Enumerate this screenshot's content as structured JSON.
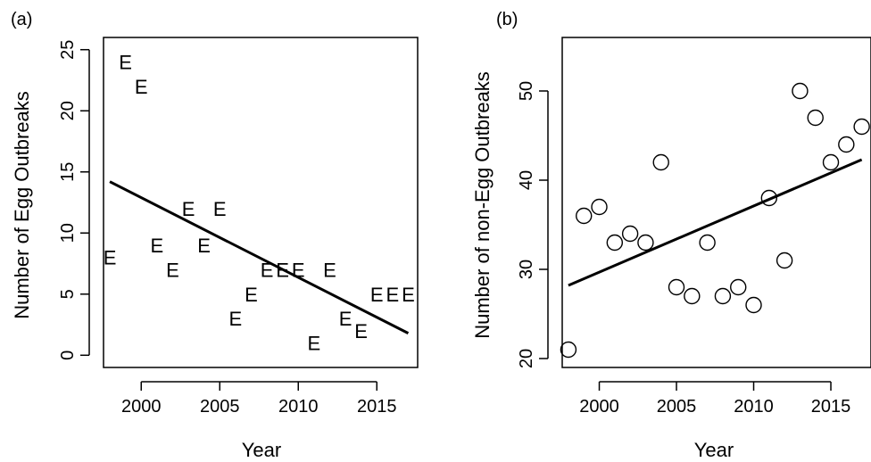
{
  "chart_data": [
    {
      "panel_label": "(a)",
      "type": "scatter",
      "marker": "E",
      "xlabel": "Year",
      "ylabel": "Number of Egg Outbreaks",
      "xlim": [
        1997.6,
        2017.6
      ],
      "ylim": [
        -1,
        26
      ],
      "xticks": [
        2000,
        2005,
        2010,
        2015
      ],
      "yticks": [
        0,
        5,
        10,
        15,
        20,
        25
      ],
      "series": [
        {
          "x": [
            1998,
            1999,
            2000,
            2001,
            2002,
            2003,
            2004,
            2005,
            2006,
            2007,
            2008,
            2009,
            2010,
            2011,
            2012,
            2013,
            2014,
            2015,
            2016,
            2017
          ],
          "y": [
            8,
            24,
            22,
            9,
            7,
            12,
            9,
            12,
            3,
            5,
            7,
            7,
            7,
            1,
            7,
            3,
            2,
            5,
            5,
            5
          ]
        }
      ],
      "trendline": {
        "x": [
          1998,
          2017
        ],
        "y": [
          14.2,
          1.8
        ]
      },
      "grid": false,
      "legend": "none"
    },
    {
      "panel_label": "(b)",
      "type": "scatter",
      "marker": "circle",
      "xlabel": "Year",
      "ylabel": "Number of non-Egg Outbreaks",
      "xlim": [
        1997.6,
        2017.6
      ],
      "ylim": [
        19,
        56
      ],
      "xticks": [
        2000,
        2005,
        2010,
        2015
      ],
      "yticks": [
        20,
        30,
        40,
        50
      ],
      "series": [
        {
          "x": [
            1998,
            1999,
            2000,
            2001,
            2002,
            2003,
            2004,
            2005,
            2006,
            2007,
            2008,
            2009,
            2010,
            2011,
            2012,
            2013,
            2014,
            2015,
            2016,
            2017
          ],
          "y": [
            21,
            36,
            37,
            33,
            34,
            33,
            42,
            28,
            27,
            33,
            27,
            28,
            26,
            38,
            31,
            50,
            47,
            42,
            44,
            46
          ]
        }
      ],
      "trendline": {
        "x": [
          1998,
          2017
        ],
        "y": [
          28.2,
          42.3
        ]
      },
      "grid": false,
      "legend": "none"
    }
  ]
}
